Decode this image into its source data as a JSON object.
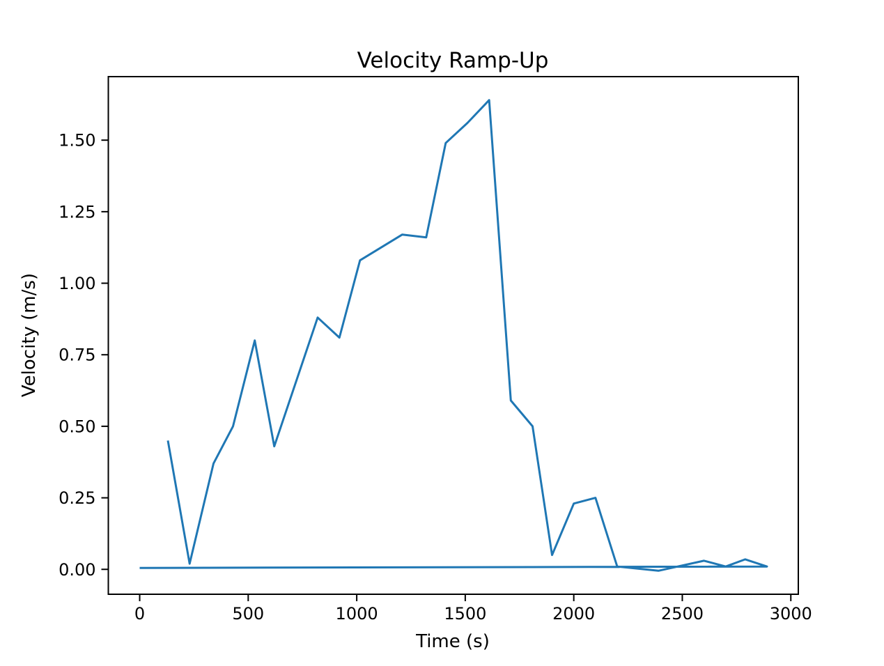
{
  "chart_data": {
    "type": "line",
    "title": "Velocity Ramp-Up",
    "xlabel": "Time (s)",
    "ylabel": "Velocity (m/s)",
    "xlim": [
      -144.5,
      3034.5
    ],
    "ylim": [
      -0.087,
      1.722
    ],
    "grid": false,
    "legend": "none",
    "background_color": "#ffffff",
    "line_color": "#1f77b4",
    "axis_color": "#000000",
    "xticks": {
      "values": [
        0,
        500,
        1000,
        1500,
        2000,
        2500,
        3000
      ],
      "labels": [
        "0",
        "500",
        "1000",
        "1500",
        "2000",
        "2500",
        "3000"
      ]
    },
    "yticks": {
      "values": [
        0.0,
        0.25,
        0.5,
        0.75,
        1.0,
        1.25,
        1.5
      ],
      "labels": [
        "0.00",
        "0.25",
        "0.50",
        "0.75",
        "1.00",
        "1.25",
        "1.50"
      ]
    },
    "series": [
      {
        "name": "velocity",
        "points": [
          [
            130,
            0.45
          ],
          [
            230,
            0.02
          ],
          [
            340,
            0.37
          ],
          [
            430,
            0.5
          ],
          [
            530,
            0.8
          ],
          [
            620,
            0.43
          ],
          [
            820,
            0.88
          ],
          [
            920,
            0.81
          ],
          [
            1015,
            1.08
          ],
          [
            1210,
            1.17
          ],
          [
            1320,
            1.16
          ],
          [
            1410,
            1.49
          ],
          [
            1510,
            1.56
          ],
          [
            1610,
            1.64
          ],
          [
            1710,
            0.59
          ],
          [
            1810,
            0.5
          ],
          [
            1900,
            0.05
          ],
          [
            2000,
            0.23
          ],
          [
            2100,
            0.25
          ],
          [
            2200,
            0.01
          ],
          [
            2390,
            -0.005
          ],
          [
            2600,
            0.03
          ],
          [
            2700,
            0.01
          ],
          [
            2790,
            0.035
          ],
          [
            2890,
            0.01
          ],
          [
            0,
            0.005
          ]
        ]
      }
    ]
  }
}
